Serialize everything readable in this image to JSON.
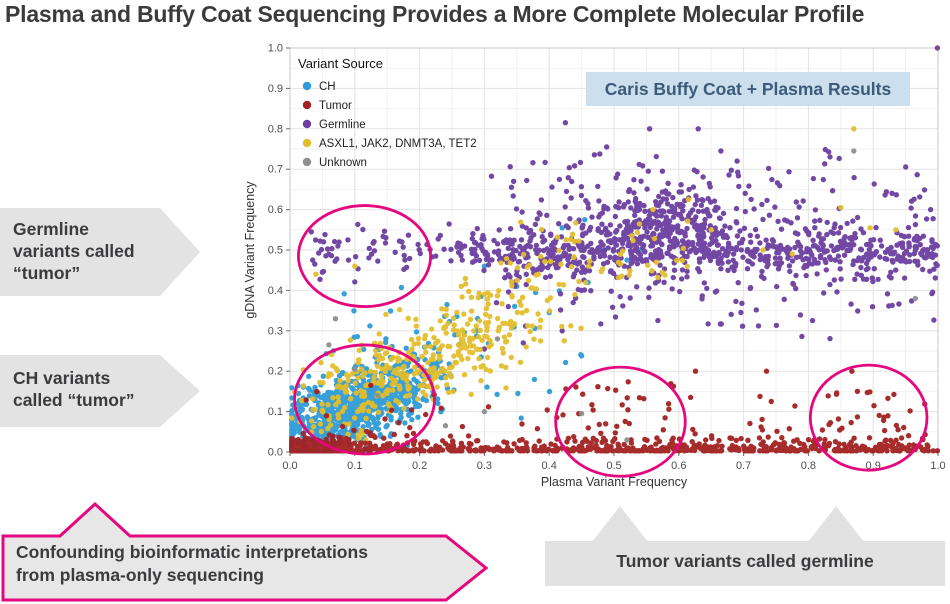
{
  "title": "Plasma and Buffy Coat Sequencing Provides a More Complete Molecular Profile",
  "annotations": {
    "results_box": "Caris Buffy Coat + Plasma Results",
    "germline_callout": {
      "lines": [
        "Germline",
        "variants called",
        "“tumor”"
      ]
    },
    "ch_callout": {
      "lines": [
        "CH variants",
        "called “tumor”"
      ]
    },
    "confounding_callout": {
      "lines": [
        "Confounding bioinformatic interpretations",
        "from plasma-only sequencing"
      ]
    },
    "tumor_germline_callout": {
      "label": "Tumor variants called germline"
    }
  },
  "chart_data": {
    "type": "scatter",
    "title": "",
    "xlabel": "Plasma Variant Frequency",
    "ylabel": "gDNA Variant Frequency",
    "xlim": [
      0,
      1
    ],
    "ylim": [
      0,
      1
    ],
    "xticks": [
      0.0,
      0.1,
      0.2,
      0.3,
      0.4,
      0.5,
      0.6,
      0.7,
      0.8,
      0.9,
      1.0
    ],
    "yticks": [
      0.0,
      0.1,
      0.2,
      0.3,
      0.4,
      0.5,
      0.6,
      0.7,
      0.8,
      0.9,
      1.0
    ],
    "grid": true,
    "legend_title": "Variant Source",
    "legend_position": "top-left-inside",
    "point_radius": 2.7,
    "series": [
      {
        "name": "CH",
        "short": "ch",
        "color": "#2E9BD6",
        "clusters": [
          {
            "type": "gauss",
            "n": 750,
            "cx": 0.085,
            "cy": 0.1,
            "sx": 0.055,
            "sy": 0.048,
            "corr": 0.55
          },
          {
            "type": "gauss",
            "n": 150,
            "cx": 0.16,
            "cy": 0.17,
            "sx": 0.05,
            "sy": 0.045,
            "corr": 0.3
          },
          {
            "type": "uniform",
            "n": 45,
            "x0": 0.08,
            "x1": 0.45,
            "y0": 0.08,
            "y1": 0.42
          },
          {
            "type": "points",
            "pts": [
              [
                0.455,
                0.575
              ],
              [
                0.42,
                0.555
              ],
              [
                0.3,
                0.46
              ],
              [
                0.35,
                0.41
              ],
              [
                0.485,
                0.5
              ],
              [
                0.52,
                0.475
              ],
              [
                0.46,
                0.42
              ],
              [
                0.4,
                0.345
              ],
              [
                0.54,
                0.5
              ]
            ]
          }
        ]
      },
      {
        "name": "Tumor",
        "short": "tumor",
        "color": "#A32121",
        "clusters": [
          {
            "type": "baseline",
            "n": 550,
            "x0": 0.002,
            "x1": 1.0,
            "scale": 0.01,
            "ymax": 0.2
          },
          {
            "type": "gauss",
            "n": 400,
            "cx": 0.035,
            "cy": 0.012,
            "sx": 0.035,
            "sy": 0.01
          },
          {
            "type": "baseline",
            "n": 140,
            "x0": 0.0,
            "x1": 1.0,
            "scale": 0.05,
            "ymax": 0.2
          },
          {
            "type": "uniform",
            "n": 25,
            "x0": 0.42,
            "x1": 0.6,
            "y0": 0.02,
            "y1": 0.17
          },
          {
            "type": "uniform",
            "n": 20,
            "x0": 0.78,
            "x1": 0.97,
            "y0": 0.02,
            "y1": 0.16
          }
        ]
      },
      {
        "name": "Germline",
        "short": "germline",
        "color": "#6B3FA0",
        "clusters": [
          {
            "type": "hband",
            "n": 520,
            "x0": 0.28,
            "x1": 1.0,
            "cy": 0.495,
            "sy": 0.03
          },
          {
            "type": "hband",
            "n": 260,
            "x0": 0.33,
            "x1": 1.0,
            "cy": 0.5,
            "sy": 0.075
          },
          {
            "type": "gauss",
            "n": 260,
            "cx": 0.575,
            "cy": 0.555,
            "sx": 0.055,
            "sy": 0.045
          },
          {
            "type": "hband",
            "n": 70,
            "x0": 0.02,
            "x1": 0.28,
            "cy": 0.5,
            "sy": 0.028
          },
          {
            "type": "uniform",
            "n": 110,
            "x0": 0.3,
            "x1": 1.0,
            "y0": 0.3,
            "y1": 0.76
          },
          {
            "type": "uniform",
            "n": 30,
            "x0": 0.42,
            "x1": 0.75,
            "y0": 0.6,
            "y1": 0.72
          },
          {
            "type": "points",
            "pts": [
              [
                1.0,
                1.0
              ],
              [
                0.425,
                0.815
              ],
              [
                0.555,
                0.8
              ],
              [
                0.63,
                0.8
              ],
              [
                0.665,
                0.745
              ],
              [
                0.69,
                0.72
              ],
              [
                0.345,
                0.67
              ],
              [
                0.05,
                0.445
              ],
              [
                0.035,
                0.475
              ],
              [
                0.3,
                0.255
              ],
              [
                0.36,
                0.27
              ],
              [
                0.42,
                0.3
              ]
            ]
          }
        ]
      },
      {
        "name": "ASXL1, JAK2, DNMT3A, TET2",
        "short": "chip-genes",
        "color": "#E3BE2C",
        "clusters": [
          {
            "type": "gauss",
            "n": 230,
            "cx": 0.155,
            "cy": 0.185,
            "sx": 0.065,
            "sy": 0.055,
            "corr": 0.45
          },
          {
            "type": "gauss",
            "n": 150,
            "cx": 0.3,
            "cy": 0.315,
            "sx": 0.07,
            "sy": 0.075,
            "corr": 0.5
          },
          {
            "type": "uniform",
            "n": 55,
            "x0": 0.33,
            "x1": 0.62,
            "y0": 0.4,
            "y1": 0.575
          },
          {
            "type": "uniform",
            "n": 25,
            "x0": 0.03,
            "x1": 0.12,
            "y0": 0.03,
            "y1": 0.12
          },
          {
            "type": "points",
            "pts": [
              [
                0.85,
                0.605
              ],
              [
                0.895,
                0.555
              ],
              [
                0.935,
                0.55
              ],
              [
                0.87,
                0.8
              ],
              [
                0.73,
                0.5
              ],
              [
                0.775,
                0.49
              ],
              [
                0.04,
                0.44
              ],
              [
                0.1,
                0.46
              ],
              [
                0.56,
                0.6
              ],
              [
                0.615,
                0.625
              ],
              [
                0.65,
                0.55
              ]
            ]
          }
        ]
      },
      {
        "name": "Unknown",
        "short": "unknown",
        "color": "#8F8F8F",
        "clusters": [
          {
            "type": "points",
            "pts": [
              [
                0.87,
                0.745
              ],
              [
                0.965,
                0.38
              ],
              [
                0.07,
                0.33
              ],
              [
                0.1,
                0.205
              ],
              [
                0.135,
                0.26
              ],
              [
                0.32,
                0.28
              ],
              [
                0.3,
                0.1
              ],
              [
                0.45,
                0.095
              ],
              [
                0.06,
                0.265
              ],
              [
                0.24,
                0.065
              ],
              [
                0.52,
                0.03
              ],
              [
                0.135,
                0.14
              ]
            ]
          }
        ]
      }
    ],
    "draw_order": [
      "CH",
      "Germline",
      "ASXL1, JAK2, DNMT3A, TET2",
      "Tumor",
      "Unknown"
    ],
    "highlight_color": "#E5077E",
    "highlight_ellipses": [
      {
        "label": "germline-called-tumor",
        "cx": 0.115,
        "cy": 0.485,
        "rx": 0.102,
        "ry": 0.125
      },
      {
        "label": "ch-called-tumor",
        "cx": 0.115,
        "cy": 0.13,
        "rx": 0.108,
        "ry": 0.135
      },
      {
        "label": "tumor-called-germline-mid",
        "cx": 0.51,
        "cy": 0.075,
        "rx": 0.1,
        "ry": 0.135
      },
      {
        "label": "tumor-called-germline-high",
        "cx": 0.893,
        "cy": 0.085,
        "rx": 0.09,
        "ry": 0.13
      }
    ]
  }
}
